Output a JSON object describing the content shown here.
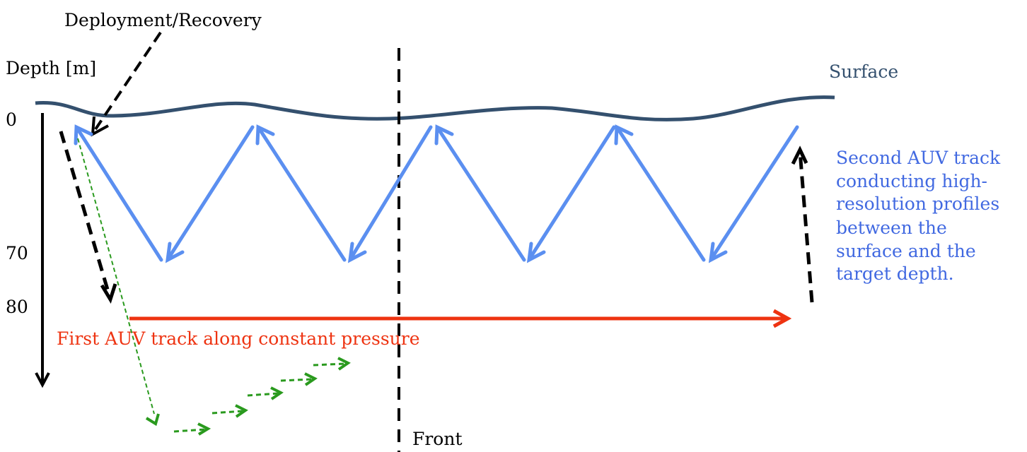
{
  "labels": {
    "deployment": "Deployment/Recovery",
    "depth_axis": "Depth [m]",
    "surface": "Surface",
    "front": "Front",
    "first_track": "First AUV track along constant pressure",
    "second_track_lines": [
      "Second AUV track",
      "conducting high-",
      "resolution profiles",
      "between the",
      "surface and the",
      "target depth."
    ]
  },
  "depth_ticks": [
    "0",
    "70",
    "80"
  ],
  "colors": {
    "surface_line": "#34506e",
    "surface_text": "#34506e",
    "profile_track": "#5b8ff0",
    "second_track_text": "#4169e1",
    "first_track": "#ee3311",
    "descent_path": "#2a9a1e",
    "axis": "#000000",
    "front_line": "#000000"
  }
}
